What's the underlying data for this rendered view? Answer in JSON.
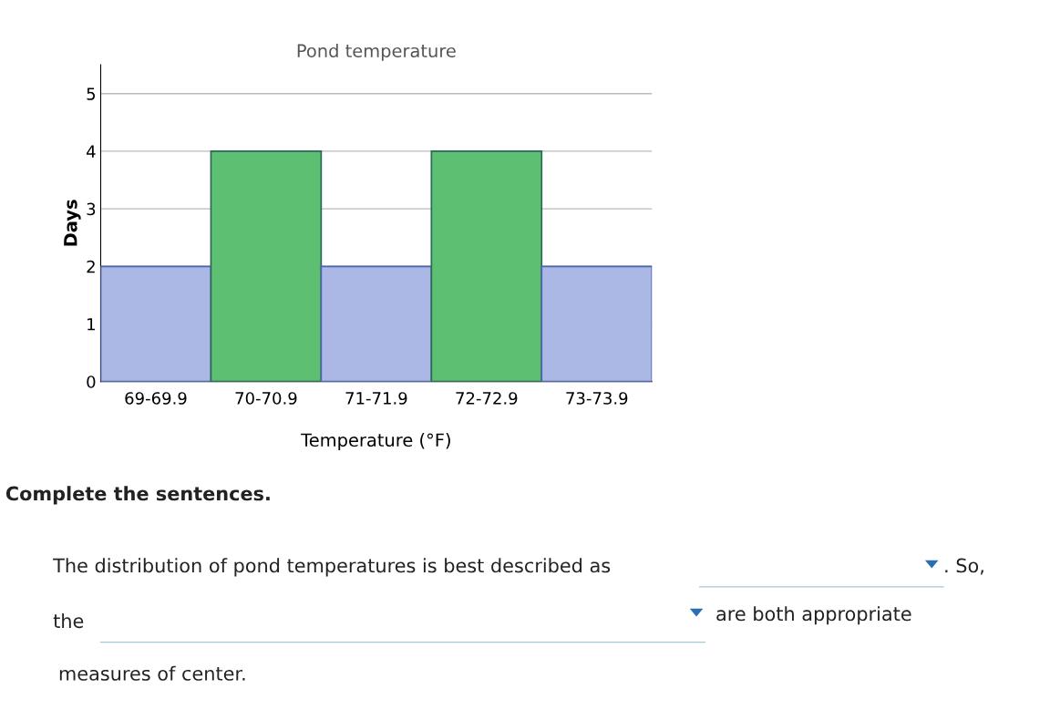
{
  "chart_data": {
    "type": "bar",
    "title": "Pond temperature",
    "xlabel": "Temperature (°F)",
    "ylabel": "Days",
    "categories": [
      "69-69.9",
      "70-70.9",
      "71-71.9",
      "72-72.9",
      "73-73.9"
    ],
    "values": [
      2,
      4,
      2,
      4,
      2
    ],
    "colors": [
      "#abb8e6",
      "#5dbf72",
      "#abb8e6",
      "#5dbf72",
      "#abb8e6"
    ],
    "ylim": [
      0,
      5.5
    ],
    "yticks": [
      0,
      1,
      2,
      3,
      4,
      5
    ],
    "grid": "y",
    "annotations": [
      "Complete the sentences.",
      "The distribution of pond temperatures is best described as",
      ". So,",
      "the",
      "are both appropriate",
      "measures of center."
    ]
  }
}
